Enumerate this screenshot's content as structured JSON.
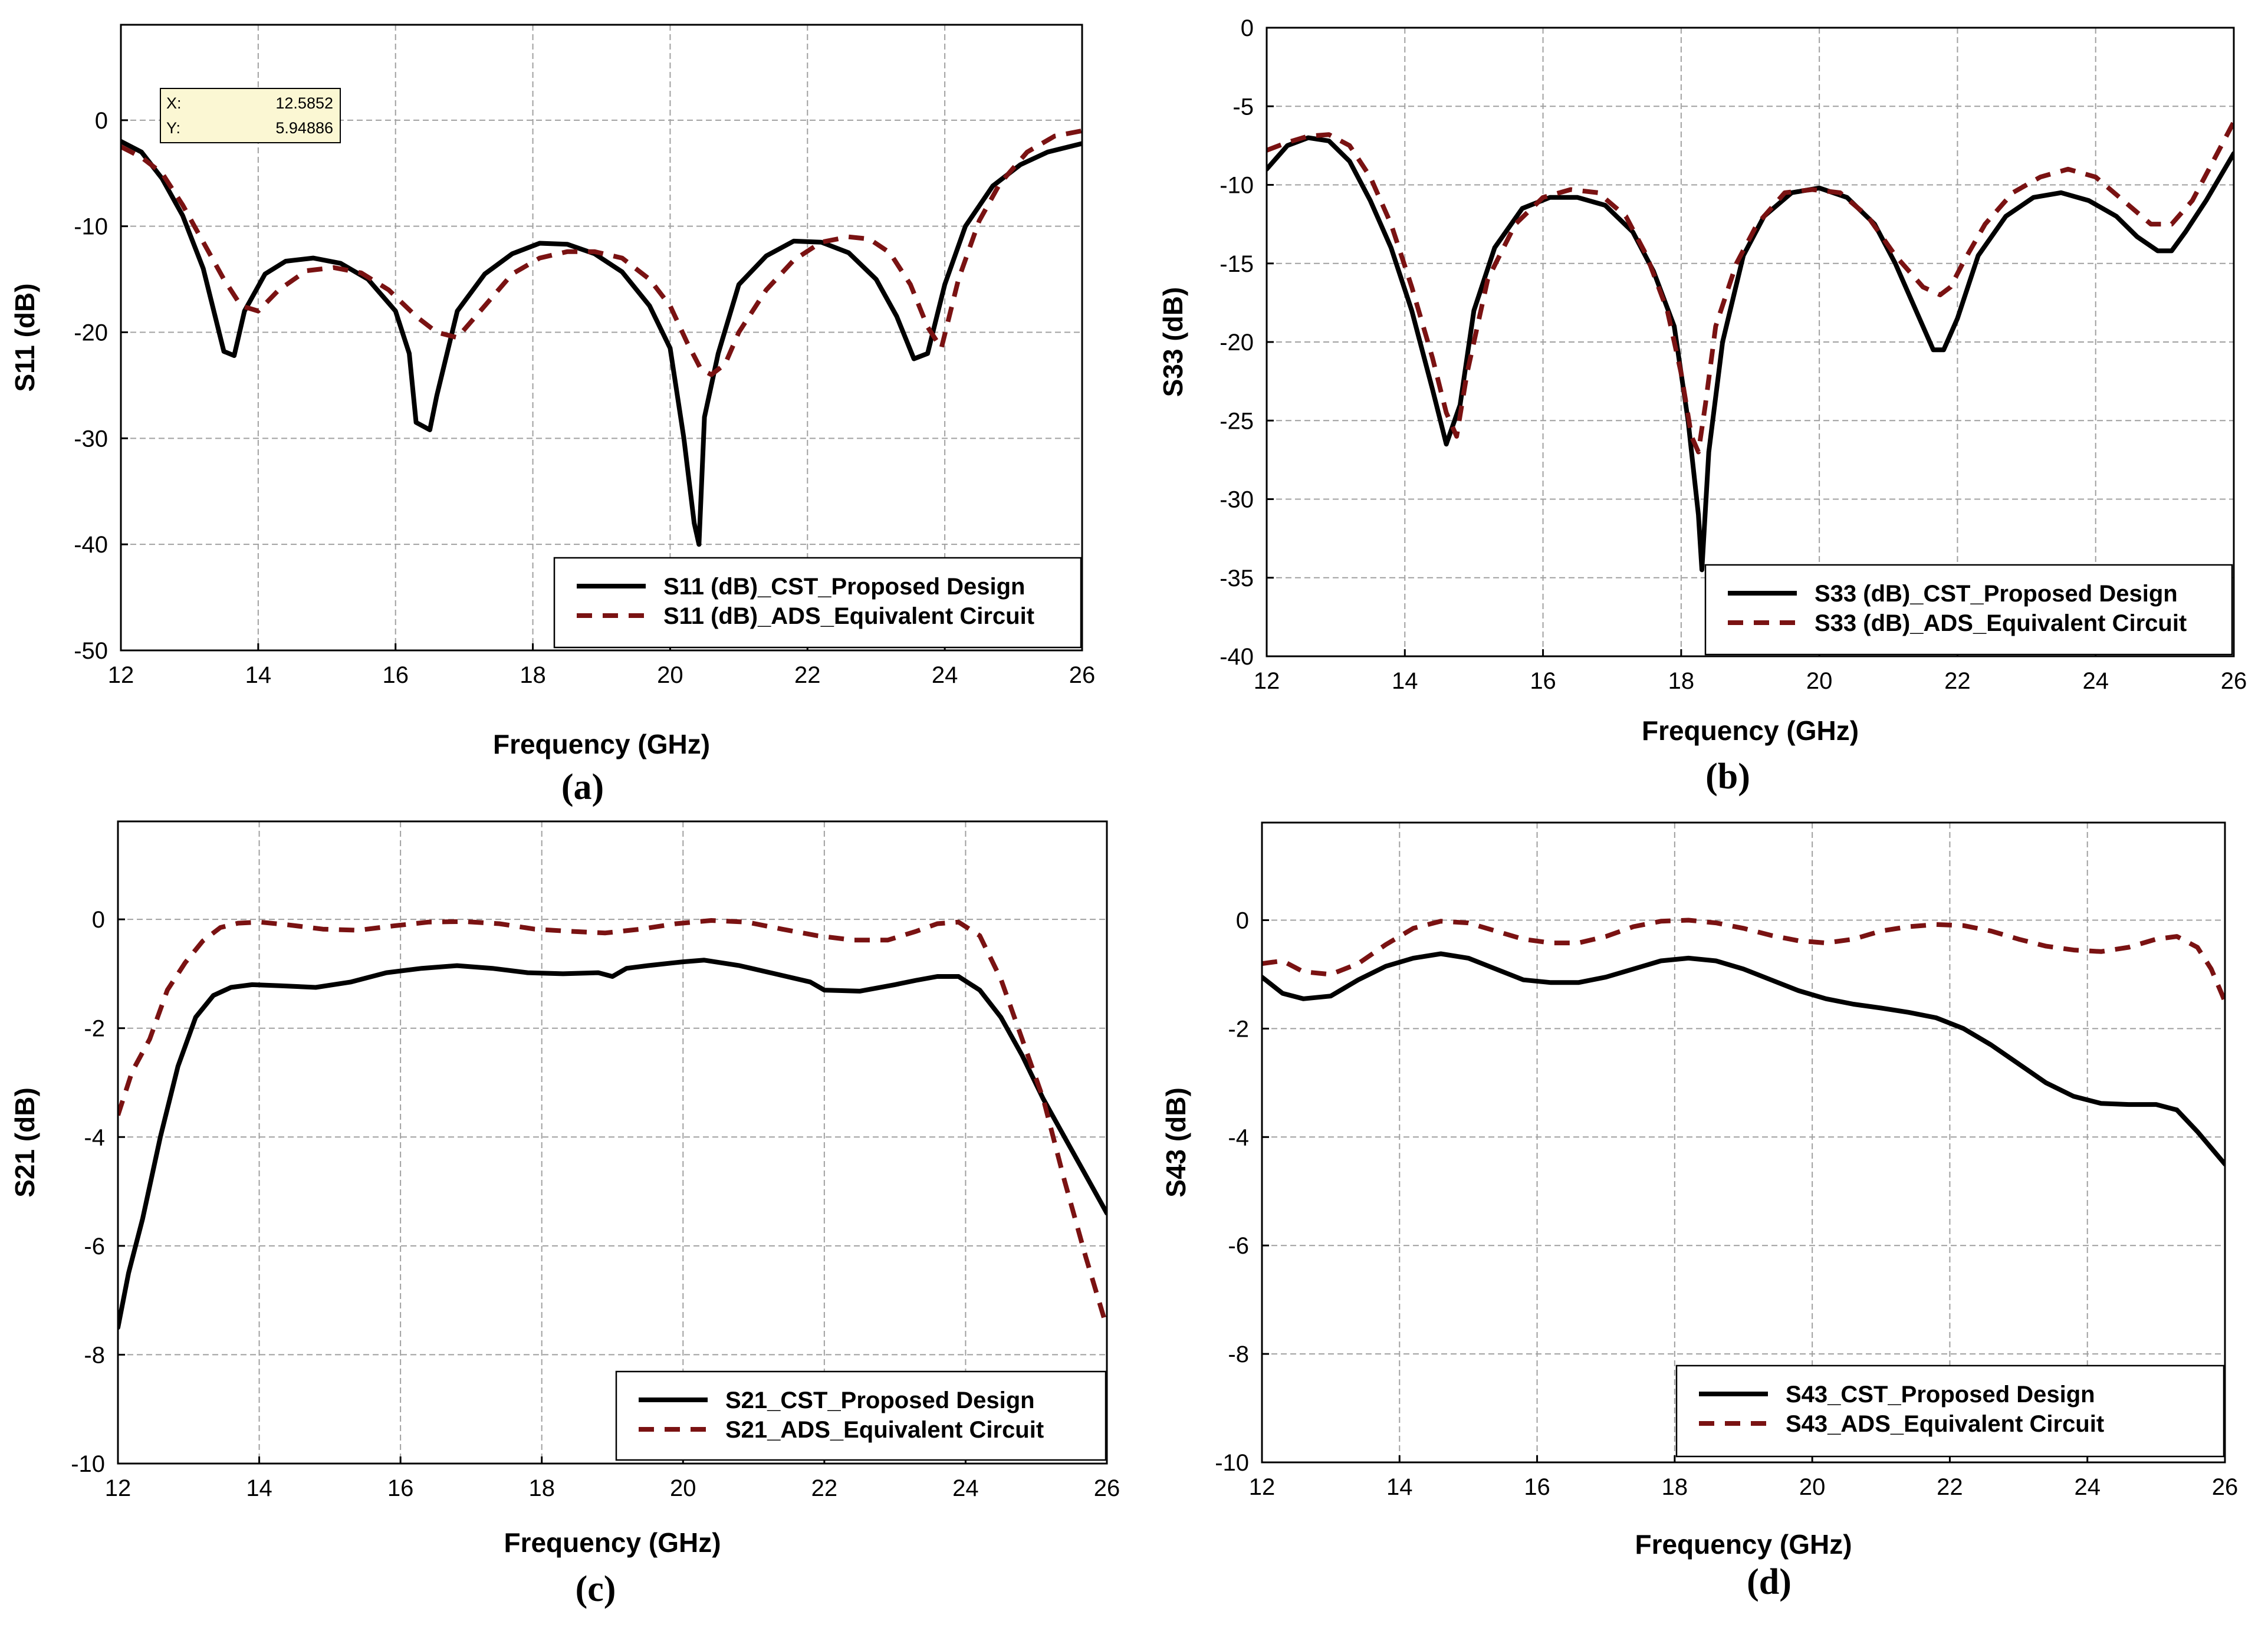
{
  "figure": {
    "panel_labels": [
      "(a)",
      "(b)",
      "(c)",
      "(d)"
    ]
  },
  "colors": {
    "cst": "#000000",
    "ads": "#7a1212",
    "grid": "#a0a0a0",
    "tooltip_bg": "#fbf7d3"
  },
  "chart_data": [
    {
      "type": "line",
      "panel": "(a)",
      "xlabel": "Frequency (GHz)",
      "ylabel": "S11 (dB)",
      "xlim": [
        12,
        26
      ],
      "ylim": [
        -50,
        9
      ],
      "xticks": [
        12,
        14,
        16,
        18,
        20,
        22,
        24,
        26
      ],
      "yticks": [
        -50,
        -40,
        -30,
        -20,
        -10,
        0
      ],
      "grid": true,
      "legend_position": "bottom-right",
      "tooltip": {
        "x_label": "X:",
        "x_value": "12.5852",
        "y_label": "Y:",
        "y_value": "5.94886"
      },
      "series": [
        {
          "name": "S11 (dB)_CST_Proposed Design",
          "style": "solid",
          "x": [
            12,
            12.3,
            12.6,
            12.9,
            13.2,
            13.5,
            13.65,
            13.8,
            14.1,
            14.4,
            14.8,
            15.2,
            15.6,
            16.0,
            16.2,
            16.3,
            16.5,
            16.6,
            16.9,
            17.3,
            17.7,
            18.1,
            18.5,
            18.9,
            19.3,
            19.7,
            20.0,
            20.2,
            20.35,
            20.42,
            20.5,
            20.7,
            21.0,
            21.4,
            21.8,
            22.2,
            22.6,
            23.0,
            23.3,
            23.55,
            23.75,
            24.0,
            24.3,
            24.7,
            25.1,
            25.5,
            26
          ],
          "y": [
            -2,
            -3,
            -5.5,
            -9,
            -14,
            -21.8,
            -22.2,
            -18,
            -14.5,
            -13.3,
            -13,
            -13.5,
            -15,
            -18,
            -22,
            -28.5,
            -29.2,
            -26,
            -18,
            -14.5,
            -12.6,
            -11.6,
            -11.7,
            -12.6,
            -14.3,
            -17.5,
            -21.5,
            -30,
            -38,
            -40,
            -28,
            -22,
            -15.5,
            -12.8,
            -11.4,
            -11.5,
            -12.5,
            -15,
            -18.5,
            -22.5,
            -22,
            -15.5,
            -10,
            -6.2,
            -4.2,
            -3,
            -2.2
          ]
        },
        {
          "name": "S11 (dB)_ADS_Equivalent Circuit",
          "style": "dashed",
          "x": [
            12,
            12.3,
            12.6,
            12.9,
            13.2,
            13.5,
            13.75,
            14.0,
            14.3,
            14.7,
            15.1,
            15.5,
            15.9,
            16.3,
            16.6,
            16.9,
            17.3,
            17.7,
            18.1,
            18.5,
            18.9,
            19.3,
            19.7,
            20.0,
            20.25,
            20.45,
            20.6,
            20.8,
            21.0,
            21.4,
            21.8,
            22.2,
            22.6,
            22.9,
            23.2,
            23.5,
            23.75,
            23.95,
            24.2,
            24.5,
            24.8,
            25.2,
            25.6,
            26
          ],
          "y": [
            -2.5,
            -3.5,
            -5,
            -8,
            -11.5,
            -15,
            -17.5,
            -18,
            -16,
            -14.2,
            -13.9,
            -14.4,
            -16,
            -18.5,
            -20,
            -20.5,
            -17.5,
            -14.5,
            -13,
            -12.4,
            -12.4,
            -13,
            -15,
            -17.5,
            -21,
            -23.5,
            -24,
            -23,
            -20,
            -16,
            -13.2,
            -11.5,
            -11,
            -11.2,
            -12.5,
            -15.5,
            -19.5,
            -21.5,
            -15,
            -9.5,
            -6,
            -3,
            -1.5,
            -1
          ]
        }
      ]
    },
    {
      "type": "line",
      "panel": "(b)",
      "xlabel": "Frequency (GHz)",
      "ylabel": "S33 (dB)",
      "xlim": [
        12,
        26
      ],
      "ylim": [
        -40,
        0
      ],
      "xticks": [
        12,
        14,
        16,
        18,
        20,
        22,
        24,
        26
      ],
      "yticks": [
        -40,
        -35,
        -30,
        -25,
        -20,
        -15,
        -10,
        -5,
        0
      ],
      "grid": true,
      "legend_position": "bottom-right",
      "series": [
        {
          "name": "S33 (dB)_CST_Proposed Design",
          "style": "solid",
          "x": [
            12,
            12.3,
            12.6,
            12.9,
            13.2,
            13.5,
            13.8,
            14.1,
            14.4,
            14.6,
            14.8,
            15.0,
            15.3,
            15.7,
            16.1,
            16.5,
            16.9,
            17.3,
            17.6,
            17.9,
            18.1,
            18.25,
            18.3,
            18.4,
            18.6,
            18.9,
            19.2,
            19.6,
            20.0,
            20.4,
            20.8,
            21.1,
            21.4,
            21.65,
            21.8,
            22.0,
            22.3,
            22.7,
            23.1,
            23.5,
            23.9,
            24.3,
            24.6,
            24.9,
            25.1,
            25.3,
            25.6,
            26
          ],
          "y": [
            -9,
            -7.5,
            -7,
            -7.2,
            -8.5,
            -11,
            -14,
            -18,
            -23,
            -26.5,
            -24,
            -18,
            -14,
            -11.5,
            -10.8,
            -10.8,
            -11.3,
            -13,
            -15.5,
            -19,
            -25,
            -31,
            -34.5,
            -27,
            -20,
            -14.5,
            -12,
            -10.5,
            -10.2,
            -10.8,
            -12.5,
            -15,
            -18,
            -20.5,
            -20.5,
            -18.5,
            -14.5,
            -12,
            -10.8,
            -10.5,
            -11,
            -12,
            -13.3,
            -14.2,
            -14.2,
            -13,
            -11,
            -8
          ]
        },
        {
          "name": "S33 (dB)_ADS_Equivalent Circuit",
          "style": "dashed",
          "x": [
            12,
            12.3,
            12.6,
            12.9,
            13.2,
            13.5,
            13.8,
            14.1,
            14.4,
            14.6,
            14.75,
            14.9,
            15.2,
            15.6,
            16.0,
            16.4,
            16.8,
            17.2,
            17.5,
            17.8,
            18.0,
            18.15,
            18.25,
            18.35,
            18.5,
            18.8,
            19.1,
            19.5,
            19.9,
            20.3,
            20.7,
            21.1,
            21.5,
            21.75,
            21.9,
            22.1,
            22.4,
            22.8,
            23.2,
            23.6,
            24.0,
            24.4,
            24.8,
            25.1,
            25.4,
            25.7,
            26
          ],
          "y": [
            -7.8,
            -7.3,
            -6.9,
            -6.8,
            -7.5,
            -9.5,
            -12.5,
            -16.5,
            -21,
            -24.5,
            -26,
            -22,
            -16,
            -12.5,
            -10.8,
            -10.3,
            -10.5,
            -12,
            -14.5,
            -18,
            -22,
            -26,
            -27,
            -24,
            -19,
            -15,
            -12.5,
            -10.5,
            -10.3,
            -10.5,
            -12,
            -14.5,
            -16.5,
            -17,
            -16.5,
            -14.8,
            -12.5,
            -10.5,
            -9.5,
            -9,
            -9.5,
            -11,
            -12.5,
            -12.5,
            -11,
            -8.5,
            -6
          ]
        }
      ]
    },
    {
      "type": "line",
      "panel": "(c)",
      "xlabel": "Frequency (GHz)",
      "ylabel": "S21 (dB)",
      "xlim": [
        12,
        26
      ],
      "ylim": [
        -10,
        1.8
      ],
      "xticks": [
        12,
        14,
        16,
        18,
        20,
        22,
        24,
        26
      ],
      "yticks": [
        -10,
        -8,
        -6,
        -4,
        -2,
        0
      ],
      "grid": true,
      "legend_position": "bottom-right",
      "series": [
        {
          "name": "S21_CST_Proposed Design",
          "style": "solid",
          "x": [
            12,
            12.15,
            12.35,
            12.6,
            12.85,
            13.1,
            13.35,
            13.6,
            13.9,
            14.3,
            14.8,
            15.3,
            15.8,
            16.3,
            16.8,
            17.3,
            17.8,
            18.3,
            18.8,
            19.0,
            19.2,
            19.5,
            20.0,
            20.3,
            20.8,
            21.3,
            21.8,
            22.0,
            22.5,
            23.0,
            23.3,
            23.6,
            23.9,
            24.2,
            24.5,
            24.8,
            25.1,
            25.4,
            25.7,
            26
          ],
          "y": [
            -7.5,
            -6.5,
            -5.5,
            -4,
            -2.7,
            -1.8,
            -1.4,
            -1.25,
            -1.2,
            -1.22,
            -1.25,
            -1.15,
            -0.98,
            -0.9,
            -0.85,
            -0.9,
            -0.98,
            -1.0,
            -0.98,
            -1.05,
            -0.9,
            -0.85,
            -0.78,
            -0.75,
            -0.85,
            -1.0,
            -1.15,
            -1.3,
            -1.32,
            -1.2,
            -1.12,
            -1.05,
            -1.05,
            -1.3,
            -1.8,
            -2.5,
            -3.3,
            -4.0,
            -4.7,
            -5.4
          ]
        },
        {
          "name": "S21_ADS_Equivalent Circuit",
          "style": "dashed",
          "x": [
            12,
            12.2,
            12.45,
            12.7,
            12.95,
            13.2,
            13.45,
            13.7,
            14.0,
            14.4,
            14.9,
            15.4,
            15.9,
            16.4,
            16.9,
            17.4,
            17.9,
            18.4,
            18.9,
            19.4,
            19.9,
            20.4,
            20.9,
            21.4,
            21.9,
            22.4,
            22.9,
            23.3,
            23.6,
            23.9,
            24.2,
            24.5,
            24.8,
            25.1,
            25.4,
            25.7,
            26
          ],
          "y": [
            -3.6,
            -2.8,
            -2.2,
            -1.3,
            -0.8,
            -0.4,
            -0.15,
            -0.07,
            -0.05,
            -0.1,
            -0.18,
            -0.2,
            -0.12,
            -0.05,
            -0.04,
            -0.08,
            -0.18,
            -0.22,
            -0.25,
            -0.18,
            -0.08,
            -0.02,
            -0.05,
            -0.18,
            -0.3,
            -0.38,
            -0.38,
            -0.22,
            -0.08,
            -0.05,
            -0.3,
            -1.1,
            -2.2,
            -3.3,
            -4.8,
            -6.2,
            -7.5
          ]
        }
      ]
    },
    {
      "type": "line",
      "panel": "(d)",
      "xlabel": "Frequency (GHz)",
      "ylabel": "S43 (dB)",
      "xlim": [
        12,
        26
      ],
      "ylim": [
        -10,
        1.8
      ],
      "xticks": [
        12,
        14,
        16,
        18,
        20,
        22,
        24,
        26
      ],
      "yticks": [
        -10,
        -8,
        -6,
        -4,
        -2,
        0
      ],
      "grid": true,
      "legend_position": "bottom-right",
      "series": [
        {
          "name": "S43_CST_Proposed Design",
          "style": "solid",
          "x": [
            12,
            12.3,
            12.6,
            13.0,
            13.4,
            13.8,
            14.2,
            14.6,
            15.0,
            15.4,
            15.8,
            16.2,
            16.6,
            17.0,
            17.4,
            17.8,
            18.2,
            18.6,
            19.0,
            19.4,
            19.8,
            20.2,
            20.6,
            21.0,
            21.4,
            21.8,
            22.2,
            22.6,
            23.0,
            23.4,
            23.8,
            24.2,
            24.6,
            25.0,
            25.3,
            25.6,
            26
          ],
          "y": [
            -1.05,
            -1.35,
            -1.45,
            -1.4,
            -1.1,
            -0.85,
            -0.7,
            -0.62,
            -0.7,
            -0.9,
            -1.1,
            -1.15,
            -1.15,
            -1.05,
            -0.9,
            -0.75,
            -0.7,
            -0.75,
            -0.9,
            -1.1,
            -1.3,
            -1.45,
            -1.55,
            -1.62,
            -1.7,
            -1.8,
            -2.0,
            -2.3,
            -2.65,
            -3.0,
            -3.25,
            -3.38,
            -3.4,
            -3.4,
            -3.5,
            -3.9,
            -4.5
          ]
        },
        {
          "name": "S43_ADS_Equivalent Circuit",
          "style": "dashed",
          "x": [
            12,
            12.3,
            12.6,
            13.0,
            13.4,
            13.8,
            14.2,
            14.6,
            15.0,
            15.4,
            15.8,
            16.2,
            16.6,
            17.0,
            17.4,
            17.8,
            18.2,
            18.6,
            19.0,
            19.4,
            19.8,
            20.2,
            20.6,
            21.0,
            21.4,
            21.8,
            22.2,
            22.6,
            23.0,
            23.4,
            23.8,
            24.2,
            24.6,
            25.0,
            25.3,
            25.6,
            25.8,
            26
          ],
          "y": [
            -0.8,
            -0.75,
            -0.95,
            -1.0,
            -0.8,
            -0.45,
            -0.15,
            -0.02,
            -0.05,
            -0.2,
            -0.35,
            -0.42,
            -0.42,
            -0.3,
            -0.12,
            -0.02,
            0,
            -0.05,
            -0.15,
            -0.28,
            -0.38,
            -0.42,
            -0.35,
            -0.2,
            -0.12,
            -0.08,
            -0.1,
            -0.2,
            -0.35,
            -0.48,
            -0.55,
            -0.58,
            -0.5,
            -0.35,
            -0.3,
            -0.5,
            -0.9,
            -1.5
          ]
        }
      ]
    }
  ]
}
